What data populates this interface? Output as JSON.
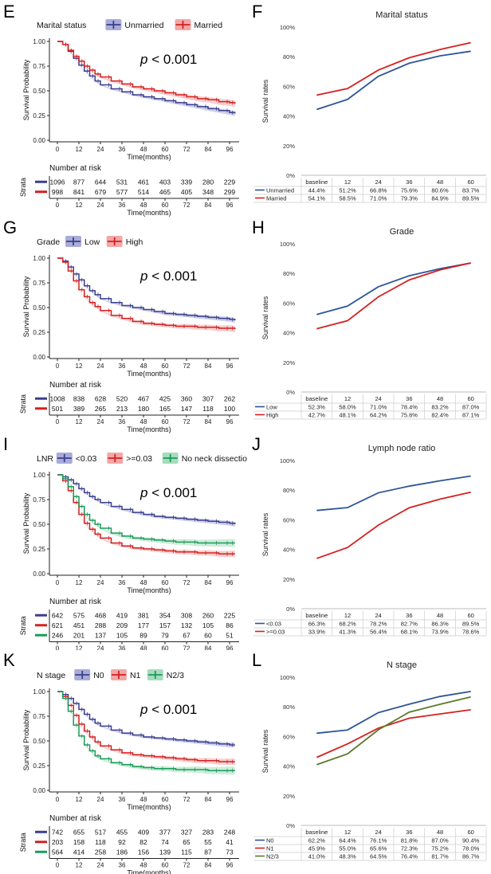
{
  "panel_letters": [
    "E",
    "F",
    "G",
    "H",
    "I",
    "J",
    "K",
    "L"
  ],
  "chart_data": [
    {
      "id": "E",
      "type": "line",
      "subtype": "kaplan-meier",
      "legend_title": "Marital status",
      "groups": [
        {
          "name": "Unmarried",
          "color": "#3a3f8f",
          "band": "#a9acd6",
          "x": [
            0,
            3,
            6,
            9,
            12,
            15,
            18,
            21,
            24,
            30,
            36,
            42,
            48,
            54,
            60,
            66,
            72,
            78,
            84,
            90,
            96,
            99
          ],
          "y": [
            1.0,
            0.97,
            0.9,
            0.83,
            0.76,
            0.7,
            0.65,
            0.6,
            0.56,
            0.52,
            0.49,
            0.46,
            0.44,
            0.42,
            0.4,
            0.38,
            0.36,
            0.34,
            0.32,
            0.3,
            0.28,
            0.27
          ]
        },
        {
          "name": "Married",
          "color": "#d42020",
          "band": "#f2a7a7",
          "x": [
            0,
            3,
            6,
            9,
            12,
            15,
            18,
            21,
            24,
            30,
            36,
            42,
            48,
            54,
            60,
            66,
            72,
            78,
            84,
            90,
            96,
            99
          ],
          "y": [
            1.0,
            0.97,
            0.91,
            0.85,
            0.8,
            0.75,
            0.71,
            0.67,
            0.64,
            0.6,
            0.57,
            0.54,
            0.52,
            0.5,
            0.48,
            0.46,
            0.44,
            0.42,
            0.41,
            0.39,
            0.38,
            0.37
          ]
        }
      ],
      "p_label": "p",
      "p_value": "< 0.001",
      "ylabel": "Survival Probability",
      "xlabel": "Time(months)",
      "yticks": [
        "0.00",
        "0.25",
        "0.50",
        "0.75",
        "1.00"
      ],
      "xticks": [
        "0",
        "12",
        "24",
        "36",
        "48",
        "60",
        "72",
        "84",
        "96"
      ],
      "risk_title": "Number at risk",
      "strata_label": "Strata",
      "risk": [
        [
          "1096",
          "877",
          "644",
          "531",
          "461",
          "403",
          "339",
          "280",
          "229"
        ],
        [
          "998",
          "841",
          "679",
          "577",
          "514",
          "465",
          "405",
          "348",
          "299"
        ]
      ]
    },
    {
      "id": "F",
      "type": "line",
      "title": "Marital status",
      "ylabel": "Survival rates",
      "yticks": [
        "0%",
        "20%",
        "40%",
        "60%",
        "80%",
        "100%"
      ],
      "categories": [
        "baseline",
        "12",
        "24",
        "36",
        "48",
        "60"
      ],
      "ylim": [
        0,
        100
      ],
      "series": [
        {
          "name": "Unmarried",
          "color": "#2e5597",
          "values": [
            44.4,
            51.2,
            66.8,
            75.6,
            80.6,
            83.7
          ],
          "labels": [
            "44.4%",
            "51.2%",
            "66.8%",
            "75.6%",
            "80.6%",
            "83.7%"
          ]
        },
        {
          "name": "Married",
          "color": "#d42020",
          "values": [
            54.1,
            58.5,
            71.0,
            79.3,
            84.9,
            89.5
          ],
          "labels": [
            "54.1%",
            "58.5%",
            "71.0%",
            "79.3%",
            "84.9%",
            "89.5%"
          ]
        }
      ]
    },
    {
      "id": "G",
      "type": "line",
      "subtype": "kaplan-meier",
      "legend_title": "Grade",
      "groups": [
        {
          "name": "Low",
          "color": "#3a3f8f",
          "band": "#a9acd6",
          "x": [
            0,
            3,
            6,
            9,
            12,
            15,
            18,
            21,
            24,
            30,
            36,
            42,
            48,
            54,
            60,
            66,
            72,
            78,
            84,
            90,
            96,
            99
          ],
          "y": [
            1.0,
            0.97,
            0.91,
            0.84,
            0.78,
            0.72,
            0.67,
            0.63,
            0.59,
            0.55,
            0.52,
            0.5,
            0.48,
            0.46,
            0.44,
            0.43,
            0.42,
            0.41,
            0.4,
            0.39,
            0.38,
            0.37
          ]
        },
        {
          "name": "High",
          "color": "#d42020",
          "band": "#f2a7a7",
          "x": [
            0,
            3,
            6,
            9,
            12,
            15,
            18,
            21,
            24,
            30,
            36,
            42,
            48,
            54,
            60,
            66,
            72,
            78,
            84,
            90,
            96,
            99
          ],
          "y": [
            1.0,
            0.96,
            0.87,
            0.77,
            0.68,
            0.61,
            0.55,
            0.51,
            0.47,
            0.42,
            0.39,
            0.36,
            0.34,
            0.33,
            0.32,
            0.31,
            0.31,
            0.3,
            0.3,
            0.29,
            0.29,
            0.28
          ]
        }
      ],
      "p_label": "p",
      "p_value": "< 0.001",
      "ylabel": "Survival Probability",
      "xlabel": "Time(months)",
      "yticks": [
        "0.00",
        "0.25",
        "0.50",
        "0.75",
        "1.00"
      ],
      "xticks": [
        "0",
        "12",
        "24",
        "36",
        "48",
        "60",
        "72",
        "84",
        "96"
      ],
      "risk_title": "Number at risk",
      "strata_label": "Strata",
      "risk": [
        [
          "1008",
          "838",
          "628",
          "520",
          "467",
          "425",
          "360",
          "307",
          "262"
        ],
        [
          "501",
          "389",
          "265",
          "213",
          "180",
          "165",
          "147",
          "118",
          "100"
        ]
      ]
    },
    {
      "id": "H",
      "type": "line",
      "title": "Grade",
      "ylabel": "Survival rates",
      "yticks": [
        "0%",
        "20%",
        "40%",
        "60%",
        "80%",
        "100%"
      ],
      "categories": [
        "baseline",
        "12",
        "24",
        "36",
        "48",
        "60"
      ],
      "ylim": [
        0,
        100
      ],
      "series": [
        {
          "name": "Low",
          "color": "#2e5597",
          "values": [
            52.3,
            58.0,
            71.0,
            78.4,
            83.2,
            87.0
          ],
          "labels": [
            "52.3%",
            "58.0%",
            "71.0%",
            "78.4%",
            "83.2%",
            "87.0%"
          ]
        },
        {
          "name": "High",
          "color": "#d42020",
          "values": [
            42.7,
            48.1,
            64.2,
            75.6,
            82.4,
            87.1
          ],
          "labels": [
            "42.7%",
            "48.1%",
            "64.2%",
            "75.6%",
            "82.4%",
            "87.1%"
          ]
        }
      ]
    },
    {
      "id": "I",
      "type": "line",
      "subtype": "kaplan-meier",
      "legend_title": "LNR",
      "groups": [
        {
          "name": "<0.03",
          "color": "#3a3f8f",
          "band": "#a9acd6",
          "x": [
            0,
            3,
            6,
            9,
            12,
            15,
            18,
            21,
            24,
            30,
            36,
            42,
            48,
            54,
            60,
            66,
            72,
            78,
            84,
            90,
            96,
            99
          ],
          "y": [
            1.0,
            0.98,
            0.95,
            0.91,
            0.86,
            0.82,
            0.78,
            0.75,
            0.72,
            0.68,
            0.65,
            0.62,
            0.6,
            0.58,
            0.57,
            0.56,
            0.55,
            0.54,
            0.53,
            0.52,
            0.51,
            0.5
          ]
        },
        {
          "name": ">=0.03",
          "color": "#d42020",
          "band": "#f2a7a7",
          "x": [
            0,
            3,
            6,
            9,
            12,
            15,
            18,
            21,
            24,
            30,
            36,
            42,
            48,
            54,
            60,
            66,
            72,
            78,
            84,
            90,
            96,
            99
          ],
          "y": [
            1.0,
            0.94,
            0.84,
            0.72,
            0.6,
            0.51,
            0.45,
            0.4,
            0.36,
            0.31,
            0.28,
            0.26,
            0.25,
            0.24,
            0.23,
            0.22,
            0.22,
            0.21,
            0.21,
            0.2,
            0.2,
            0.2
          ]
        },
        {
          "name": "No neck dissection",
          "color": "#1a9b5a",
          "band": "#a6dcbd",
          "x": [
            0,
            3,
            6,
            9,
            12,
            15,
            18,
            21,
            24,
            30,
            36,
            42,
            48,
            54,
            60,
            66,
            72,
            78,
            84,
            90,
            96,
            99
          ],
          "y": [
            1.0,
            0.96,
            0.88,
            0.78,
            0.68,
            0.6,
            0.54,
            0.5,
            0.46,
            0.41,
            0.38,
            0.36,
            0.35,
            0.34,
            0.33,
            0.32,
            0.32,
            0.31,
            0.31,
            0.31,
            0.31,
            0.31
          ]
        }
      ],
      "p_label": "p",
      "p_value": "< 0.001",
      "ylabel": "Survival Probability",
      "xlabel": "Time(months)",
      "yticks": [
        "0.00",
        "0.25",
        "0.50",
        "0.75",
        "1.00"
      ],
      "xticks": [
        "0",
        "12",
        "24",
        "36",
        "48",
        "60",
        "72",
        "84",
        "96"
      ],
      "risk_title": "Number at risk",
      "strata_label": "Strata",
      "risk": [
        [
          "642",
          "575",
          "468",
          "419",
          "381",
          "354",
          "308",
          "260",
          "225"
        ],
        [
          "621",
          "451",
          "288",
          "209",
          "177",
          "157",
          "132",
          "105",
          "86"
        ],
        [
          "246",
          "201",
          "137",
          "105",
          "89",
          "79",
          "67",
          "60",
          "51"
        ]
      ]
    },
    {
      "id": "J",
      "type": "line",
      "title": "Lymph node ratio",
      "ylabel": "Survival rates",
      "yticks": [
        "0%",
        "20%",
        "40%",
        "60%",
        "80%",
        "100%"
      ],
      "categories": [
        "baseline",
        "12",
        "24",
        "36",
        "48",
        "60"
      ],
      "ylim": [
        0,
        100
      ],
      "series": [
        {
          "name": "<0.03",
          "color": "#2e5597",
          "values": [
            66.3,
            68.2,
            78.2,
            82.7,
            86.3,
            89.5
          ],
          "labels": [
            "66.3%",
            "68.2%",
            "78.2%",
            "82.7%",
            "86.3%",
            "89.5%"
          ]
        },
        {
          "name": ">=0.03",
          "color": "#d42020",
          "values": [
            33.9,
            41.3,
            56.4,
            68.1,
            73.9,
            78.6
          ],
          "labels": [
            "33.9%",
            "41.3%",
            "56.4%",
            "68.1%",
            "73.9%",
            "78.6%"
          ]
        }
      ]
    },
    {
      "id": "K",
      "type": "line",
      "subtype": "kaplan-meier",
      "legend_title": "N stage",
      "groups": [
        {
          "name": "N0",
          "color": "#3a3f8f",
          "band": "#a9acd6",
          "x": [
            0,
            3,
            6,
            9,
            12,
            15,
            18,
            21,
            24,
            30,
            36,
            42,
            48,
            54,
            60,
            66,
            72,
            78,
            84,
            90,
            96,
            99
          ],
          "y": [
            1.0,
            0.97,
            0.93,
            0.88,
            0.82,
            0.77,
            0.72,
            0.68,
            0.65,
            0.61,
            0.58,
            0.56,
            0.54,
            0.53,
            0.52,
            0.51,
            0.5,
            0.49,
            0.48,
            0.47,
            0.46,
            0.46
          ]
        },
        {
          "name": "N1",
          "color": "#d42020",
          "band": "#f2a7a7",
          "x": [
            0,
            3,
            6,
            9,
            12,
            15,
            18,
            21,
            24,
            30,
            36,
            42,
            48,
            54,
            60,
            66,
            72,
            78,
            84,
            90,
            96,
            99
          ],
          "y": [
            1.0,
            0.95,
            0.86,
            0.76,
            0.67,
            0.6,
            0.54,
            0.49,
            0.45,
            0.41,
            0.38,
            0.36,
            0.35,
            0.34,
            0.33,
            0.32,
            0.31,
            0.3,
            0.3,
            0.29,
            0.29,
            0.29
          ]
        },
        {
          "name": "N2/3",
          "color": "#1a9b5a",
          "band": "#a6dcbd",
          "x": [
            0,
            3,
            6,
            9,
            12,
            15,
            18,
            21,
            24,
            30,
            36,
            42,
            48,
            54,
            60,
            66,
            72,
            78,
            84,
            90,
            96,
            99
          ],
          "y": [
            1.0,
            0.93,
            0.8,
            0.66,
            0.55,
            0.46,
            0.4,
            0.35,
            0.32,
            0.28,
            0.26,
            0.24,
            0.23,
            0.22,
            0.22,
            0.21,
            0.21,
            0.21,
            0.2,
            0.2,
            0.2,
            0.2
          ]
        }
      ],
      "p_label": "p",
      "p_value": "< 0.001",
      "ylabel": "Survival Probability",
      "xlabel": "Time(months)",
      "yticks": [
        "0.00",
        "0.25",
        "0.50",
        "0.75",
        "1.00"
      ],
      "xticks": [
        "0",
        "12",
        "24",
        "36",
        "48",
        "60",
        "72",
        "84",
        "96"
      ],
      "risk_title": "Number at risk",
      "strata_label": "Strata",
      "risk": [
        [
          "742",
          "655",
          "517",
          "455",
          "409",
          "377",
          "327",
          "283",
          "248"
        ],
        [
          "203",
          "158",
          "118",
          "92",
          "82",
          "74",
          "65",
          "55",
          "41"
        ],
        [
          "564",
          "414",
          "258",
          "186",
          "156",
          "139",
          "115",
          "87",
          "73"
        ]
      ]
    },
    {
      "id": "L",
      "type": "line",
      "title": "N stage",
      "ylabel": "Survival rates",
      "yticks": [
        "0%",
        "20%",
        "40%",
        "60%",
        "80%",
        "100%"
      ],
      "categories": [
        "baseline",
        "12",
        "24",
        "36",
        "48",
        "60"
      ],
      "ylim": [
        0,
        100
      ],
      "series": [
        {
          "name": "N0",
          "color": "#2e5597",
          "values": [
            62.2,
            64.4,
            76.1,
            81.8,
            87.0,
            90.4
          ],
          "labels": [
            "62.2%",
            "64.4%",
            "76.1%",
            "81.8%",
            "87.0%",
            "90.4%"
          ]
        },
        {
          "name": "N1",
          "color": "#d42020",
          "values": [
            45.9,
            55.0,
            65.6,
            72.3,
            75.2,
            78.0
          ],
          "labels": [
            "45.9%",
            "55.0%",
            "65.6%",
            "72.3%",
            "75.2%",
            "78.0%"
          ]
        },
        {
          "name": "N2/3",
          "color": "#5a7a2a",
          "values": [
            41.0,
            48.3,
            64.5,
            76.4,
            81.7,
            86.7
          ],
          "labels": [
            "41.0%",
            "48.3%",
            "64.5%",
            "76.4%",
            "81.7%",
            "86.7%"
          ]
        }
      ]
    }
  ]
}
